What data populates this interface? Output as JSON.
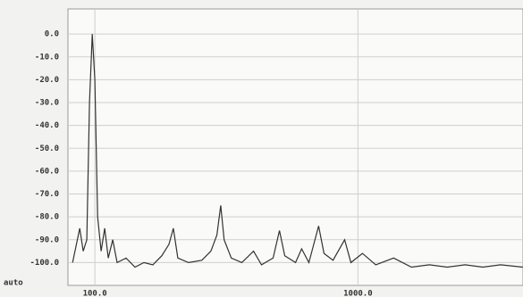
{
  "chart_data": {
    "type": "line",
    "log_x": true,
    "grid": true,
    "annotation": "auto",
    "x": [
      82.3,
      87.6,
      90.3,
      93.2,
      95.4,
      97.7,
      100,
      102.4,
      105.6,
      109,
      112.4,
      116.9,
      121.5,
      131.4,
      142.1,
      153.6,
      166.1,
      179.6,
      191.2,
      198.7,
      206.7,
      227,
      255,
      276,
      291,
      301,
      310,
      330,
      362,
      401,
      430,
      476,
      503,
      527,
      579,
      611,
      651,
      709,
      743,
      804,
      890,
      940,
      1040,
      1169,
      1367,
      1597,
      1867,
      2183,
      2552,
      2983,
      3487,
      4230
    ],
    "series": [
      {
        "color": "#333333",
        "values": [
          -100,
          -85,
          -95,
          -90,
          -30,
          0,
          -20,
          -80,
          -95,
          -85,
          -98,
          -90,
          -100,
          -98,
          -102,
          -100,
          -101,
          -97,
          -92,
          -85,
          -98,
          -100,
          -99,
          -95,
          -88,
          -75,
          -90,
          -98,
          -100,
          -95,
          -101,
          -98,
          -86,
          -97,
          -100,
          -94,
          -100,
          -84,
          -96,
          -99,
          -90,
          -100,
          -96,
          -101,
          -98,
          -102,
          -101,
          -102,
          -101,
          -102,
          -101,
          -102
        ]
      }
    ],
    "xlim": [
      79,
      4240
    ],
    "xticks": [
      {
        "value": 100,
        "label": "100.0"
      },
      {
        "value": 1000,
        "label": "1000.0"
      }
    ],
    "ylim": [
      -110,
      11
    ],
    "yticks": [
      {
        "value": 0,
        "label": "0.0"
      },
      {
        "value": -10,
        "label": "-10.0"
      },
      {
        "value": -20,
        "label": "-20.0"
      },
      {
        "value": -30,
        "label": "-30.0"
      },
      {
        "value": -40,
        "label": "-40.0"
      },
      {
        "value": -50,
        "label": "-50.0"
      },
      {
        "value": -60,
        "label": "-60.0"
      },
      {
        "value": -70,
        "label": "-70.0"
      },
      {
        "value": -80,
        "label": "-80.0"
      },
      {
        "value": -90,
        "label": "-90.0"
      },
      {
        "value": -100,
        "label": "-100.0"
      }
    ]
  }
}
